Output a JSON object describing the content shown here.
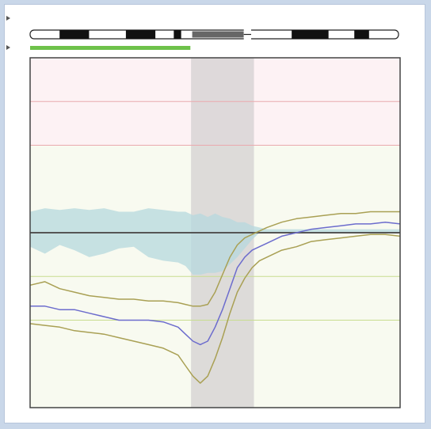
{
  "chart_data": {
    "type": "line",
    "title": "",
    "xlabel": "",
    "ylabel": "",
    "xlim": [
      0,
      100
    ],
    "ylim": [
      0,
      100
    ],
    "grid": false,
    "legend": "none",
    "colors": {
      "upper_band": "#fdf2f4",
      "lower_band": "#f8faf0",
      "highlight": "#d8d5d5",
      "red_lines": "#eaa9ae",
      "green_lines": "#c8dd8f",
      "center_line": "#555555",
      "area_fill": "#b5d8de",
      "median_line": "#6c6ccd",
      "bound_lines": "#a9a054",
      "track": "#6ec24a"
    },
    "ideogram_bands": [
      {
        "start": 0,
        "end": 8,
        "stain": "light"
      },
      {
        "start": 8,
        "end": 16,
        "stain": "dark"
      },
      {
        "start": 16,
        "end": 26,
        "stain": "light"
      },
      {
        "start": 26,
        "end": 34,
        "stain": "dark"
      },
      {
        "start": 34,
        "end": 39,
        "stain": "light"
      },
      {
        "start": 39,
        "end": 41,
        "stain": "dark"
      },
      {
        "start": 41,
        "end": 44,
        "stain": "light"
      },
      {
        "start": 44,
        "end": 58,
        "stain": "centromere"
      },
      {
        "start": 60,
        "end": 71,
        "stain": "light"
      },
      {
        "start": 71,
        "end": 81,
        "stain": "dark"
      },
      {
        "start": 81,
        "end": 88,
        "stain": "light"
      },
      {
        "start": 88,
        "end": 92,
        "stain": "dark"
      },
      {
        "start": 92,
        "end": 100,
        "stain": "light"
      }
    ],
    "track_range": [
      0,
      43.5
    ],
    "highlight_range": [
      43.5,
      60.5
    ],
    "center_value": 50,
    "upper_threshold": 75,
    "red_lines": [
      75,
      87.5
    ],
    "green_lines": [
      37.5,
      25
    ],
    "area": {
      "x": [
        0,
        4,
        8,
        12,
        16,
        20,
        24,
        28,
        32,
        36,
        40,
        42,
        44,
        46,
        48,
        50,
        52,
        54,
        56,
        58,
        60,
        62,
        64,
        68,
        72,
        76,
        80,
        84,
        88,
        92,
        96,
        100
      ],
      "upper": [
        56,
        57,
        56.5,
        57,
        56.5,
        57,
        56,
        56,
        57,
        56.5,
        56,
        56,
        55,
        55.5,
        54.5,
        55.5,
        54.5,
        54,
        53,
        53,
        52,
        51.5,
        51,
        51,
        51,
        51,
        51,
        51,
        51,
        51,
        51,
        51
      ],
      "lower": [
        46,
        44,
        46.5,
        45,
        43,
        44,
        45.5,
        46,
        43,
        42,
        41.5,
        40.5,
        38,
        38,
        38.5,
        38.5,
        39,
        41,
        43,
        45.5,
        48,
        50,
        50,
        50,
        50,
        50,
        50,
        50,
        50,
        50,
        50,
        50
      ]
    },
    "series": [
      {
        "role": "median",
        "x": [
          0,
          4,
          8,
          12,
          16,
          20,
          24,
          28,
          32,
          36,
          40,
          42,
          44,
          46,
          48,
          50,
          52,
          54,
          56,
          58,
          60,
          62,
          64,
          68,
          72,
          76,
          80,
          84,
          88,
          92,
          96,
          100
        ],
        "y": [
          29,
          29,
          28,
          28,
          27,
          26,
          25,
          25,
          25,
          24.5,
          23,
          21,
          19,
          18,
          19,
          23,
          28,
          34,
          40,
          43,
          45,
          46,
          47,
          49,
          50,
          51,
          51.5,
          52,
          52.5,
          52.5,
          53,
          52.5
        ]
      },
      {
        "role": "upper_bound",
        "x": [
          0,
          4,
          8,
          12,
          16,
          20,
          24,
          28,
          32,
          36,
          40,
          42,
          44,
          46,
          48,
          50,
          52,
          54,
          56,
          58,
          60,
          62,
          64,
          68,
          72,
          76,
          80,
          84,
          88,
          92,
          96,
          100
        ],
        "y": [
          35,
          36,
          34,
          33,
          32,
          31.5,
          31,
          31,
          30.5,
          30.5,
          30,
          29.5,
          29,
          29,
          29.5,
          33,
          38,
          43,
          46.5,
          48.5,
          49.5,
          50.5,
          51.5,
          53,
          54,
          54.5,
          55,
          55.5,
          55.5,
          56,
          56,
          56
        ]
      },
      {
        "role": "lower_bound",
        "x": [
          0,
          4,
          8,
          12,
          16,
          20,
          24,
          28,
          32,
          36,
          40,
          42,
          44,
          46,
          48,
          50,
          52,
          54,
          56,
          58,
          60,
          62,
          64,
          68,
          72,
          76,
          80,
          84,
          88,
          92,
          96,
          100
        ],
        "y": [
          24,
          23.5,
          23,
          22,
          21.5,
          21,
          20,
          19,
          18,
          17,
          15,
          12,
          9,
          7,
          9,
          14,
          20,
          27,
          33,
          37,
          40,
          42,
          43,
          45,
          46,
          47.5,
          48,
          48.5,
          49,
          49.5,
          49.5,
          49
        ]
      }
    ]
  }
}
